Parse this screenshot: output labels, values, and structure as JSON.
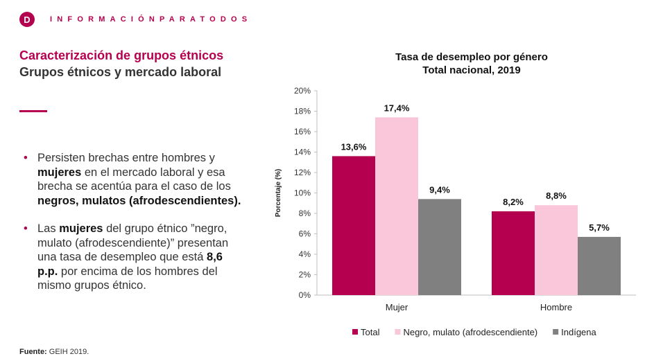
{
  "header": {
    "logo_letter": "D",
    "brand": "INFORMACIÓNPARATODOS"
  },
  "slide": {
    "title": "Caracterización de grupos étnicos",
    "subtitle": "Grupos étnicos y mercado laboral"
  },
  "bullets": [
    {
      "segments": [
        {
          "text": "Persisten brechas entre hombres y ",
          "bold": false
        },
        {
          "text": "mujeres",
          "bold": true
        },
        {
          "text": " en el mercado laboral y esa brecha se acentúa para el caso de los ",
          "bold": false
        },
        {
          "text": "negros, mulatos (afrodescendientes).",
          "bold": true
        }
      ]
    },
    {
      "segments": [
        {
          "text": "Las ",
          "bold": false
        },
        {
          "text": "mujeres",
          "bold": true
        },
        {
          "text": " del grupo étnico ”negro, mulato (afrodescendiente)” presentan una tasa de desempleo que está ",
          "bold": false
        },
        {
          "text": "8,6 p.p.",
          "bold": true
        },
        {
          "text": " por encima de los hombres del mismo grupos étnico.",
          "bold": false
        }
      ]
    }
  ],
  "footer": {
    "source_label": "Fuente:",
    "source_text": " GEIH 2019."
  },
  "colors": {
    "accent": "#b5004f",
    "total": "#b5004f",
    "negro": "#f9c6da",
    "indigena": "#808080"
  },
  "chart_data": {
    "type": "bar",
    "title": "Tasa de desempleo por género",
    "subtitle": "Total nacional, 2019",
    "xlabel": "",
    "ylabel": "Porcentaje (%)",
    "ylim": [
      0,
      20
    ],
    "yticks": [
      "0%",
      "2%",
      "4%",
      "6%",
      "8%",
      "10%",
      "12%",
      "14%",
      "16%",
      "18%",
      "20%"
    ],
    "categories": [
      "Mujer",
      "Hombre"
    ],
    "series": [
      {
        "name": "Total",
        "color": "#b5004f",
        "values": [
          13.6,
          8.2
        ],
        "labels": [
          "13,6%",
          "8,2%"
        ]
      },
      {
        "name": "Negro, mulato (afrodescendiente)",
        "color": "#f9c6da",
        "values": [
          17.4,
          8.8
        ],
        "labels": [
          "17,4%",
          "8,8%"
        ]
      },
      {
        "name": "Indígena",
        "color": "#808080",
        "values": [
          9.4,
          5.7
        ],
        "labels": [
          "9,4%",
          "5,7%"
        ]
      }
    ],
    "grid": false,
    "legend": "bottom"
  }
}
